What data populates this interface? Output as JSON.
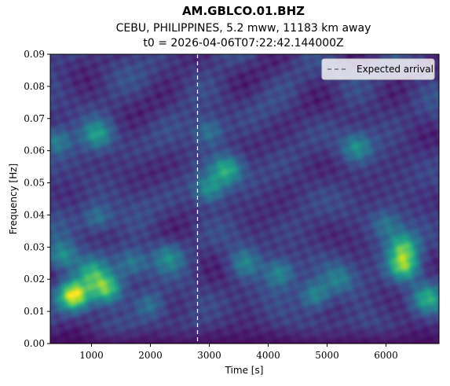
{
  "chart_data": {
    "type": "heatmap",
    "title": "AM.GBLCO.01.BHZ",
    "subtitle_lines": [
      "CEBU, PHILIPPINES, 5.2 mww, 11183 km away",
      "t0 = 2026-04-06T07:22:42.144000Z"
    ],
    "xlabel": "Time [s]",
    "ylabel": "Frequency [Hz]",
    "xlim": [
      300,
      6900
    ],
    "ylim": [
      0.0,
      0.09
    ],
    "xticks": [
      1000,
      2000,
      3000,
      4000,
      5000,
      6000
    ],
    "xtick_labels": [
      "1000",
      "2000",
      "3000",
      "4000",
      "5000",
      "6000"
    ],
    "yticks": [
      0.0,
      0.01,
      0.02,
      0.03,
      0.04,
      0.05,
      0.06,
      0.07,
      0.08,
      0.09
    ],
    "ytick_labels": [
      "0.00",
      "0.01",
      "0.02",
      "0.03",
      "0.04",
      "0.05",
      "0.06",
      "0.07",
      "0.08",
      "0.09"
    ],
    "colormap": "viridis",
    "expected_arrival": {
      "x": 2800,
      "label": "Expected arrival",
      "color": "#ffffff",
      "style": "dashed"
    },
    "legend": {
      "entries": [
        "Expected arrival"
      ],
      "placement": "top-right"
    },
    "energy_peaks": [
      {
        "t": 700,
        "f": 0.015,
        "amp": 1.0
      },
      {
        "t": 1250,
        "f": 0.017,
        "amp": 0.75
      },
      {
        "t": 500,
        "f": 0.027,
        "amp": 0.5
      },
      {
        "t": 1000,
        "f": 0.022,
        "amp": 0.45
      },
      {
        "t": 1700,
        "f": 0.025,
        "amp": 0.35
      },
      {
        "t": 2300,
        "f": 0.027,
        "amp": 0.35
      },
      {
        "t": 1100,
        "f": 0.065,
        "amp": 0.45
      },
      {
        "t": 400,
        "f": 0.063,
        "amp": 0.4
      },
      {
        "t": 1100,
        "f": 0.039,
        "amp": 0.35
      },
      {
        "t": 3300,
        "f": 0.054,
        "amp": 0.55
      },
      {
        "t": 3000,
        "f": 0.048,
        "amp": 0.45
      },
      {
        "t": 3000,
        "f": 0.066,
        "amp": 0.35
      },
      {
        "t": 3600,
        "f": 0.025,
        "amp": 0.35
      },
      {
        "t": 4200,
        "f": 0.022,
        "amp": 0.4
      },
      {
        "t": 4800,
        "f": 0.015,
        "amp": 0.45
      },
      {
        "t": 5500,
        "f": 0.061,
        "amp": 0.4
      },
      {
        "t": 6300,
        "f": 0.024,
        "amp": 0.75
      },
      {
        "t": 6300,
        "f": 0.03,
        "amp": 0.6
      },
      {
        "t": 6700,
        "f": 0.014,
        "amp": 0.5
      },
      {
        "t": 6000,
        "f": 0.037,
        "amp": 0.3
      },
      {
        "t": 5200,
        "f": 0.02,
        "amp": 0.3
      },
      {
        "t": 2000,
        "f": 0.012,
        "amp": 0.3
      }
    ]
  }
}
